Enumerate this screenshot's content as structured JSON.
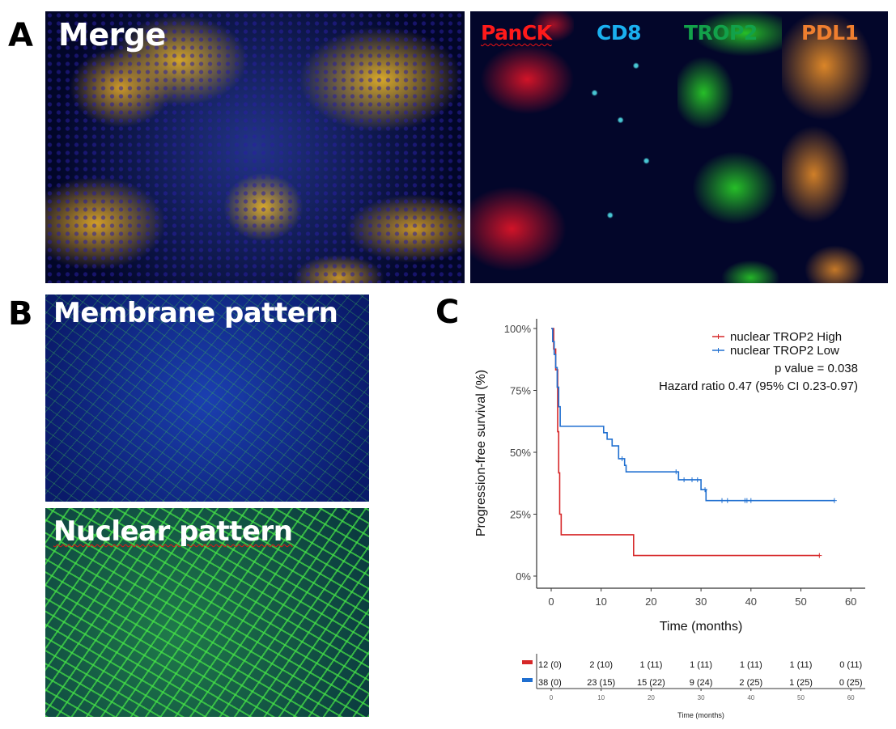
{
  "panels": {
    "A": {
      "letter": "A",
      "merge_label": "Merge",
      "channels": [
        {
          "label": "PanCK",
          "color": "#ff1a1a"
        },
        {
          "label": "CD8",
          "color": "#1ab0ef"
        },
        {
          "label": "TROP2",
          "color": "#12a14a"
        },
        {
          "label": "PDL1",
          "color": "#ef7f2f"
        }
      ]
    },
    "B": {
      "letter": "B",
      "top_label": "Membrane pattern",
      "bottom_label": "Nuclear pattern"
    },
    "C": {
      "letter": "C",
      "legend": {
        "high": "nuclear TROP2 High",
        "low": "nuclear TROP2 Low",
        "p_value": "p value = 0.038",
        "hazard_ratio": "Hazard ratio 0.47 (95% CI 0.23-0.97)"
      },
      "risk_table": {
        "high_row": [
          "12 (0)",
          "2 (10)",
          "1 (11)",
          "1 (11)",
          "1 (11)",
          "1 (11)",
          "0 (11)"
        ],
        "low_row": [
          "38 (0)",
          "23 (15)",
          "15 (22)",
          "9 (24)",
          "2 (25)",
          "1 (25)",
          "0 (25)"
        ],
        "xticks": [
          "0",
          "10",
          "20",
          "30",
          "40",
          "50",
          "60"
        ],
        "xlabel": "Time (months)"
      }
    }
  },
  "chart_data": {
    "type": "line",
    "subtype": "kaplan-meier step",
    "title": "",
    "xlabel": "Time (months)",
    "ylabel": "Progression-free survival (%)",
    "xlim": [
      -3,
      63
    ],
    "ylim": [
      -5,
      105
    ],
    "xticks": [
      0,
      10,
      20,
      30,
      40,
      50,
      60
    ],
    "yticks": [
      "0%",
      "25%",
      "50%",
      "75%",
      "100%"
    ],
    "grid": false,
    "legend_position": "top-right",
    "annotations": [
      "p value = 0.038",
      "Hazard ratio 0.47 (95% CI 0.23-0.97)"
    ],
    "series": [
      {
        "name": "nuclear TROP2 High",
        "color": "#d62728",
        "x": [
          0,
          0.5,
          0.9,
          1.3,
          1.5,
          1.7,
          2.0,
          16.5,
          53.7
        ],
        "y": [
          100,
          91.7,
          83.3,
          58.3,
          41.7,
          25.0,
          16.7,
          8.3,
          8.3
        ],
        "censored_x": [
          53.7
        ]
      },
      {
        "name": "nuclear TROP2 Low",
        "color": "#1f6fd0",
        "x": [
          0,
          0.3,
          0.6,
          0.9,
          1.2,
          1.5,
          1.8,
          10.5,
          11.2,
          12.2,
          13.5,
          14.7,
          15.0,
          25.5,
          30.0,
          31.0,
          56.7
        ],
        "y": [
          100,
          94.7,
          89.5,
          84.2,
          76.3,
          68.4,
          60.5,
          57.9,
          55.3,
          52.6,
          47.4,
          44.7,
          42.1,
          38.9,
          34.9,
          30.5,
          30.5
        ],
        "censored_x": [
          14.2,
          25.0,
          26.6,
          28.2,
          29.3,
          30.8,
          34.2,
          35.3,
          38.8,
          39.2,
          40.0,
          56.7
        ]
      }
    ],
    "risk_table": {
      "times": [
        0,
        10,
        20,
        30,
        40,
        50,
        60
      ],
      "high": [
        [
          12,
          0
        ],
        [
          2,
          10
        ],
        [
          1,
          11
        ],
        [
          1,
          11
        ],
        [
          1,
          11
        ],
        [
          1,
          11
        ],
        [
          0,
          11
        ]
      ],
      "low": [
        [
          38,
          0
        ],
        [
          23,
          15
        ],
        [
          15,
          22
        ],
        [
          9,
          24
        ],
        [
          2,
          25
        ],
        [
          1,
          25
        ],
        [
          0,
          25
        ]
      ]
    }
  }
}
